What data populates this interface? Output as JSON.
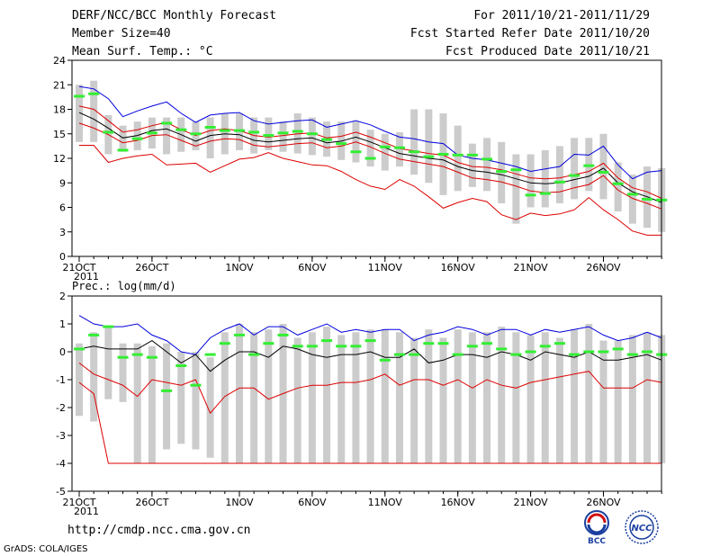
{
  "header": {
    "title": "DERF/NCC/BCC Monthly Forecast",
    "member_size": "Member Size=40",
    "variable": "Mean Surf. Temp.: °C",
    "period": "For 2011/10/21-2011/11/29",
    "started": "Fcst Started Refer Date 2011/10/20",
    "produced": "Fcst Produced Date 2011/10/21"
  },
  "footer": {
    "url": "http://cmdp.ncc.cma.gov.cn",
    "grads": "GrADS: COLA/IGES",
    "logo1_text": "BCC",
    "logo2_text": "NCC"
  },
  "colors": {
    "max": "#0000dd",
    "min_line": "#dd0000",
    "mean": "#000000",
    "box": "#cccccc",
    "bar": "#33ee33"
  },
  "chart_data": [
    {
      "type": "line",
      "title": "Mean Surf. Temp.: °C",
      "x_ticks": [
        "21OCT",
        "26OCT",
        "1NOV",
        "6NOV",
        "11NOV",
        "16NOV",
        "21NOV",
        "26NOV"
      ],
      "x_tick_days": [
        0,
        5,
        11,
        16,
        21,
        26,
        31,
        36
      ],
      "x_year": "2011",
      "ylim": [
        0,
        24
      ],
      "y_ticks": [
        0,
        3,
        6,
        9,
        12,
        15,
        18,
        21,
        24
      ],
      "series": [
        {
          "name": "max",
          "values": [
            20.8,
            20.5,
            19.3,
            17.1,
            17.8,
            18.4,
            18.9,
            17.5,
            16.4,
            17.3,
            17.5,
            17.6,
            16.6,
            16.2,
            16.4,
            16.6,
            16.7,
            15.8,
            16.2,
            16.6,
            16.1,
            15.3,
            14.6,
            14.4,
            14.0,
            13.8,
            12.4,
            12.0,
            11.8,
            11.4,
            11.0,
            10.4,
            10.7,
            11.0,
            12.5,
            12.4,
            13.5,
            11.2,
            9.5,
            10.3,
            10.5
          ]
        },
        {
          "name": "upper",
          "values": [
            18.4,
            18.0,
            16.6,
            15.2,
            15.5,
            16.0,
            16.4,
            15.5,
            14.8,
            15.4,
            15.6,
            15.4,
            14.8,
            14.6,
            14.8,
            15.0,
            15.1,
            14.5,
            14.7,
            15.2,
            14.6,
            13.9,
            13.2,
            12.9,
            12.6,
            12.4,
            11.5,
            11.0,
            10.9,
            10.6,
            10.1,
            9.6,
            9.5,
            9.6,
            10.0,
            10.4,
            11.4,
            9.6,
            8.4,
            7.9,
            7.1
          ]
        },
        {
          "name": "mean",
          "values": [
            17.6,
            16.8,
            15.7,
            14.5,
            14.8,
            15.4,
            15.6,
            14.9,
            14.1,
            14.8,
            15.0,
            14.9,
            14.2,
            14.0,
            14.2,
            14.4,
            14.5,
            13.9,
            14.1,
            14.6,
            14.0,
            13.3,
            12.6,
            12.3,
            12.0,
            11.8,
            11.0,
            10.5,
            10.3,
            10.0,
            9.5,
            9.0,
            8.9,
            9.0,
            9.4,
            9.8,
            10.8,
            9.0,
            7.9,
            7.3,
            6.6
          ]
        },
        {
          "name": "lower",
          "values": [
            16.3,
            15.7,
            14.9,
            13.9,
            14.2,
            14.8,
            14.9,
            14.2,
            13.5,
            14.1,
            14.4,
            14.3,
            13.6,
            13.4,
            13.6,
            13.8,
            13.9,
            13.3,
            13.5,
            14.0,
            13.4,
            12.6,
            11.9,
            11.6,
            11.3,
            11.0,
            10.3,
            9.6,
            9.4,
            9.1,
            8.6,
            8.0,
            7.8,
            7.9,
            8.4,
            8.8,
            9.9,
            8.1,
            7.1,
            6.5,
            5.8
          ]
        },
        {
          "name": "min",
          "values": [
            13.6,
            13.6,
            11.5,
            12.0,
            12.3,
            12.5,
            11.2,
            11.3,
            11.4,
            10.3,
            11.1,
            11.9,
            12.1,
            12.7,
            12.0,
            11.6,
            11.2,
            11.1,
            10.4,
            9.4,
            8.6,
            8.2,
            9.4,
            8.6,
            7.3,
            5.9,
            6.6,
            7.1,
            6.7,
            5.1,
            4.5,
            5.3,
            5.0,
            5.2,
            5.7,
            7.2,
            5.7,
            4.5,
            3.1,
            2.6,
            2.6
          ]
        }
      ],
      "box_low": [
        14.0,
        14.0,
        12.5,
        12.8,
        13.0,
        13.2,
        12.5,
        12.8,
        13.0,
        12.0,
        12.5,
        13.0,
        12.6,
        13.0,
        12.8,
        12.6,
        12.4,
        12.2,
        11.8,
        11.5,
        11.0,
        10.5,
        11.0,
        10.0,
        9.0,
        7.5,
        8.0,
        8.5,
        8.0,
        6.5,
        4.0,
        6.0,
        6.0,
        6.5,
        7.0,
        8.0,
        7.0,
        5.5,
        4.0,
        3.5,
        3.0
      ],
      "box_high": [
        21.0,
        21.5,
        17.3,
        16.0,
        16.5,
        17.0,
        17.0,
        17.0,
        16.5,
        17.0,
        17.5,
        17.5,
        17.0,
        17.0,
        16.5,
        17.5,
        17.0,
        16.5,
        16.5,
        16.5,
        15.5,
        15.0,
        15.2,
        18.0,
        18.0,
        17.5,
        16.0,
        13.8,
        14.5,
        14.0,
        12.5,
        12.5,
        13.0,
        13.5,
        14.5,
        14.5,
        15.0,
        11.5,
        10.0,
        11.0,
        10.8
      ],
      "bars": [
        19.6,
        19.9,
        15.2,
        13.0,
        14.4,
        15.1,
        16.3,
        15.5,
        15.0,
        15.8,
        15.4,
        15.4,
        15.2,
        14.8,
        15.1,
        15.3,
        15.0,
        14.3,
        13.8,
        12.8,
        12.0,
        13.4,
        13.3,
        12.8,
        12.2,
        12.5,
        12.4,
        12.4,
        11.9,
        10.4,
        10.6,
        7.5,
        7.7,
        9.1,
        9.9,
        11.1,
        10.3,
        8.9,
        7.6,
        7.0,
        6.9
      ]
    },
    {
      "type": "line",
      "title": "Prec.: log(mm/d)",
      "x_ticks": [
        "21OCT",
        "26OCT",
        "1NOV",
        "6NOV",
        "11NOV",
        "16NOV",
        "21NOV",
        "26NOV"
      ],
      "x_tick_days": [
        0,
        5,
        11,
        16,
        21,
        26,
        31,
        36
      ],
      "x_year": "2011",
      "ylim": [
        -5,
        2
      ],
      "y_ticks": [
        -5,
        -4,
        -3,
        -2,
        -1,
        0,
        1,
        2
      ],
      "series": [
        {
          "name": "max",
          "values": [
            1.3,
            1.0,
            0.9,
            0.9,
            1.0,
            0.6,
            0.4,
            0.0,
            -0.1,
            0.5,
            0.8,
            1.0,
            0.6,
            0.9,
            0.9,
            0.6,
            0.8,
            1.0,
            0.7,
            0.8,
            0.7,
            0.8,
            0.8,
            0.4,
            0.6,
            0.7,
            0.9,
            0.8,
            0.6,
            0.8,
            0.8,
            0.6,
            0.8,
            0.7,
            0.8,
            0.9,
            0.6,
            0.4,
            0.5,
            0.7,
            0.5
          ]
        },
        {
          "name": "mean",
          "values": [
            0.1,
            0.2,
            0.1,
            0.1,
            0.1,
            0.4,
            0.0,
            -0.4,
            -0.1,
            -0.7,
            -0.3,
            0.0,
            0.0,
            -0.2,
            0.2,
            0.1,
            -0.1,
            -0.2,
            -0.1,
            -0.1,
            0.0,
            -0.2,
            -0.2,
            0.1,
            -0.4,
            -0.3,
            -0.1,
            -0.1,
            -0.2,
            0.0,
            -0.1,
            -0.3,
            0.0,
            -0.1,
            -0.2,
            0.0,
            -0.3,
            -0.3,
            -0.2,
            -0.1,
            -0.3
          ]
        },
        {
          "name": "min",
          "values": [
            -1.1,
            -1.5,
            -4.0,
            -4.0,
            -4.0,
            -4.0,
            -4.0,
            -4.0,
            -4.0,
            -4.0,
            -4.0,
            -4.0,
            -4.0,
            -4.0,
            -4.0,
            -4.0,
            -4.0,
            -4.0,
            -4.0,
            -4.0,
            -4.0,
            -4.0,
            -4.0,
            -4.0,
            -4.0,
            -4.0,
            -4.0,
            -4.0,
            -4.0,
            -4.0,
            -4.0,
            -4.0,
            -4.0,
            -4.0,
            -4.0,
            -4.0,
            -4.0,
            -4.0,
            -4.0,
            -4.0,
            -4.0
          ]
        },
        {
          "name": "lower",
          "values": [
            -0.4,
            -0.8,
            -1.0,
            -1.2,
            -1.6,
            -1.0,
            -1.1,
            -1.2,
            -1.0,
            -2.2,
            -1.6,
            -1.3,
            -1.3,
            -1.7,
            -1.5,
            -1.3,
            -1.2,
            -1.2,
            -1.1,
            -1.1,
            -1.0,
            -0.8,
            -1.2,
            -1.0,
            -1.0,
            -1.2,
            -1.0,
            -1.3,
            -1.0,
            -1.2,
            -1.3,
            -1.1,
            -1.0,
            -0.9,
            -0.8,
            -0.7,
            -1.3,
            -1.3,
            -1.3,
            -1.0,
            -1.1
          ]
        }
      ],
      "box_low": [
        -2.3,
        -2.5,
        -1.7,
        -1.8,
        -4.0,
        -4.0,
        -3.5,
        -3.3,
        -3.5,
        -3.8,
        -4.0,
        -4.0,
        -4.0,
        -4.0,
        -4.0,
        -4.0,
        -4.0,
        -4.0,
        -4.0,
        -4.0,
        -4.0,
        -4.0,
        -4.0,
        -4.0,
        -4.0,
        -4.0,
        -4.0,
        -4.0,
        -4.0,
        -4.0,
        -4.0,
        -4.0,
        -4.0,
        -4.0,
        -4.0,
        -4.0,
        -4.0,
        -4.0,
        -4.0,
        -4.0,
        -4.0
      ],
      "box_high": [
        0.3,
        0.7,
        0.9,
        0.3,
        0.3,
        0.2,
        0.3,
        0.0,
        0.0,
        -0.2,
        0.7,
        1.0,
        0.7,
        0.8,
        1.0,
        0.5,
        0.7,
        0.9,
        0.6,
        0.7,
        0.8,
        0.8,
        0.7,
        0.5,
        0.8,
        0.5,
        0.8,
        0.7,
        0.7,
        0.9,
        0.7,
        0.6,
        0.7,
        0.5,
        0.8,
        1.0,
        0.4,
        0.4,
        0.6,
        0.7,
        0.6
      ],
      "bars": [
        0.1,
        0.6,
        0.9,
        -0.2,
        -0.1,
        -0.2,
        -1.4,
        -0.5,
        -1.2,
        -0.1,
        0.3,
        0.6,
        -0.1,
        0.3,
        0.6,
        0.2,
        0.2,
        0.4,
        0.2,
        0.2,
        0.4,
        -0.3,
        -0.1,
        -0.1,
        0.3,
        0.3,
        -0.1,
        0.2,
        0.3,
        0.1,
        -0.1,
        0.0,
        0.2,
        0.3,
        -0.1,
        0.0,
        0.0,
        0.1,
        -0.1,
        0.0,
        -0.1
      ]
    }
  ]
}
